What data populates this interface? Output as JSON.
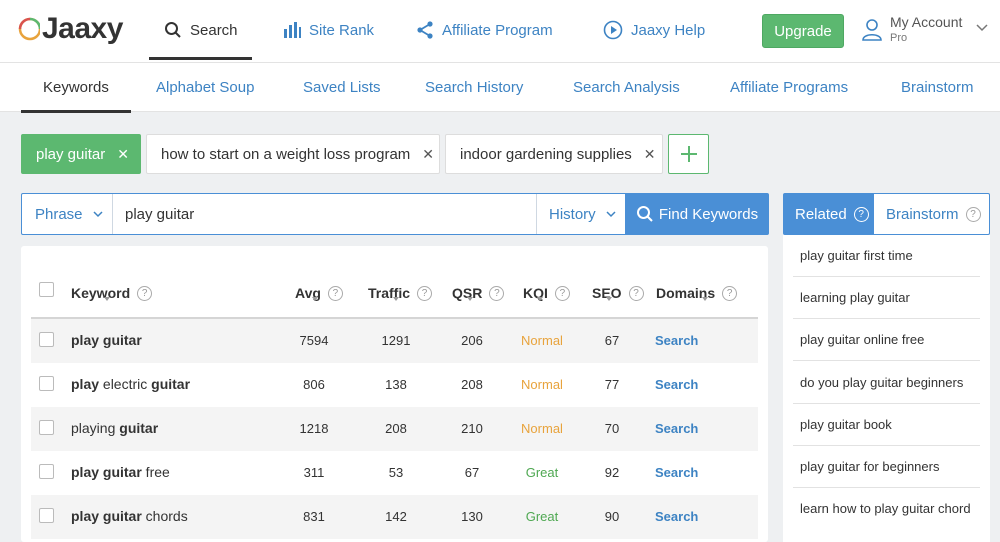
{
  "brand": {
    "logo_text": "Jaaxy",
    "accent": "#4a8fd6",
    "green": "#5cb870"
  },
  "topnav": {
    "items": [
      {
        "label": "Search",
        "icon": "search-icon"
      },
      {
        "label": "Site Rank",
        "icon": "bar-chart-icon"
      },
      {
        "label": "Affiliate Program",
        "icon": "share-icon"
      },
      {
        "label": "Jaaxy Help",
        "icon": "play-circle-icon"
      }
    ],
    "upgrade_label": "Upgrade",
    "account_label": "My Account",
    "account_plan": "Pro"
  },
  "subnav": {
    "items": [
      "Keywords",
      "Alphabet Soup",
      "Saved Lists",
      "Search History",
      "Search Analysis",
      "Affiliate Programs",
      "Brainstorm"
    ]
  },
  "query_tabs": [
    {
      "label": "play guitar",
      "active": true
    },
    {
      "label": "how to start on a weight loss program",
      "active": false
    },
    {
      "label": "indoor gardening supplies",
      "active": false
    }
  ],
  "search": {
    "mode": "Phrase",
    "value": "play guitar",
    "history_label": "History",
    "find_label": "Find Keywords"
  },
  "table": {
    "headers": [
      "Keyword",
      "Avg",
      "Traffic",
      "QSR",
      "KQI",
      "SEO",
      "Domains"
    ],
    "rows": [
      {
        "kw_parts": [
          [
            "play guitar",
            true
          ]
        ],
        "avg": "7594",
        "traffic": "1291",
        "qsr": "206",
        "kqi": "Normal",
        "seo": "67",
        "domains": "Search"
      },
      {
        "kw_parts": [
          [
            "play",
            true
          ],
          [
            " electric ",
            false
          ],
          [
            "guitar",
            true
          ]
        ],
        "avg": "806",
        "traffic": "138",
        "qsr": "208",
        "kqi": "Normal",
        "seo": "77",
        "domains": "Search"
      },
      {
        "kw_parts": [
          [
            "playing ",
            false
          ],
          [
            "guitar",
            true
          ]
        ],
        "avg": "1218",
        "traffic": "208",
        "qsr": "210",
        "kqi": "Normal",
        "seo": "70",
        "domains": "Search"
      },
      {
        "kw_parts": [
          [
            "play guitar",
            true
          ],
          [
            " free",
            false
          ]
        ],
        "avg": "311",
        "traffic": "53",
        "qsr": "67",
        "kqi": "Great",
        "seo": "92",
        "domains": "Search"
      },
      {
        "kw_parts": [
          [
            "play guitar",
            true
          ],
          [
            " chords",
            false
          ]
        ],
        "avg": "831",
        "traffic": "142",
        "qsr": "130",
        "kqi": "Great",
        "seo": "90",
        "domains": "Search"
      }
    ]
  },
  "right_panel": {
    "tab_related": "Related",
    "tab_brainstorm": "Brainstorm",
    "items": [
      "play guitar first time",
      "learning play guitar",
      "play guitar online free",
      "do you play guitar beginners",
      "play guitar book",
      "play guitar for beginners",
      "learn how to play guitar chord"
    ]
  }
}
